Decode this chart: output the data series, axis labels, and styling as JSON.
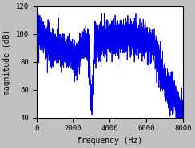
{
  "line_color": "#0000ee",
  "line_width": 0.6,
  "xlim": [
    0,
    8000
  ],
  "ylim": [
    40,
    120
  ],
  "xticks": [
    0,
    2000,
    4000,
    6000,
    8000
  ],
  "yticks": [
    40,
    60,
    80,
    100,
    120
  ],
  "xlabel": "frequency (Hz)",
  "ylabel": "magnitude (dB)",
  "background_color": "#c0c0c0",
  "axes_bg": "#ffffff",
  "seed": 7,
  "n_points": 4000
}
